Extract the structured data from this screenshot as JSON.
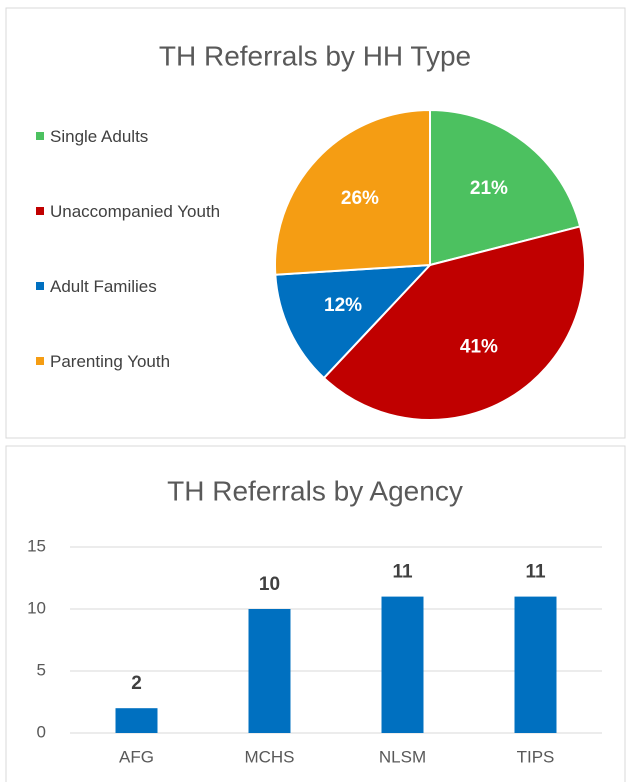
{
  "chart_data": [
    {
      "type": "pie",
      "title": "TH Referrals by HH Type",
      "categories": [
        "Single Adults",
        "Unaccompanied Youth",
        "Adult Families",
        "Parenting Youth"
      ],
      "values": [
        21,
        41,
        12,
        26
      ],
      "value_labels": [
        "21%",
        "41%",
        "12%",
        "26%"
      ],
      "colors": [
        "#4cc160",
        "#c00000",
        "#0070c0",
        "#f59d13"
      ]
    },
    {
      "type": "bar",
      "title": "TH Referrals by Agency",
      "categories": [
        "AFG",
        "MCHS",
        "NLSM",
        "TIPS"
      ],
      "values": [
        2,
        10,
        11,
        11
      ],
      "color": "#0070c0",
      "ylim": [
        0,
        15
      ],
      "yticks": [
        0,
        5,
        10,
        15
      ],
      "grid": true
    }
  ]
}
